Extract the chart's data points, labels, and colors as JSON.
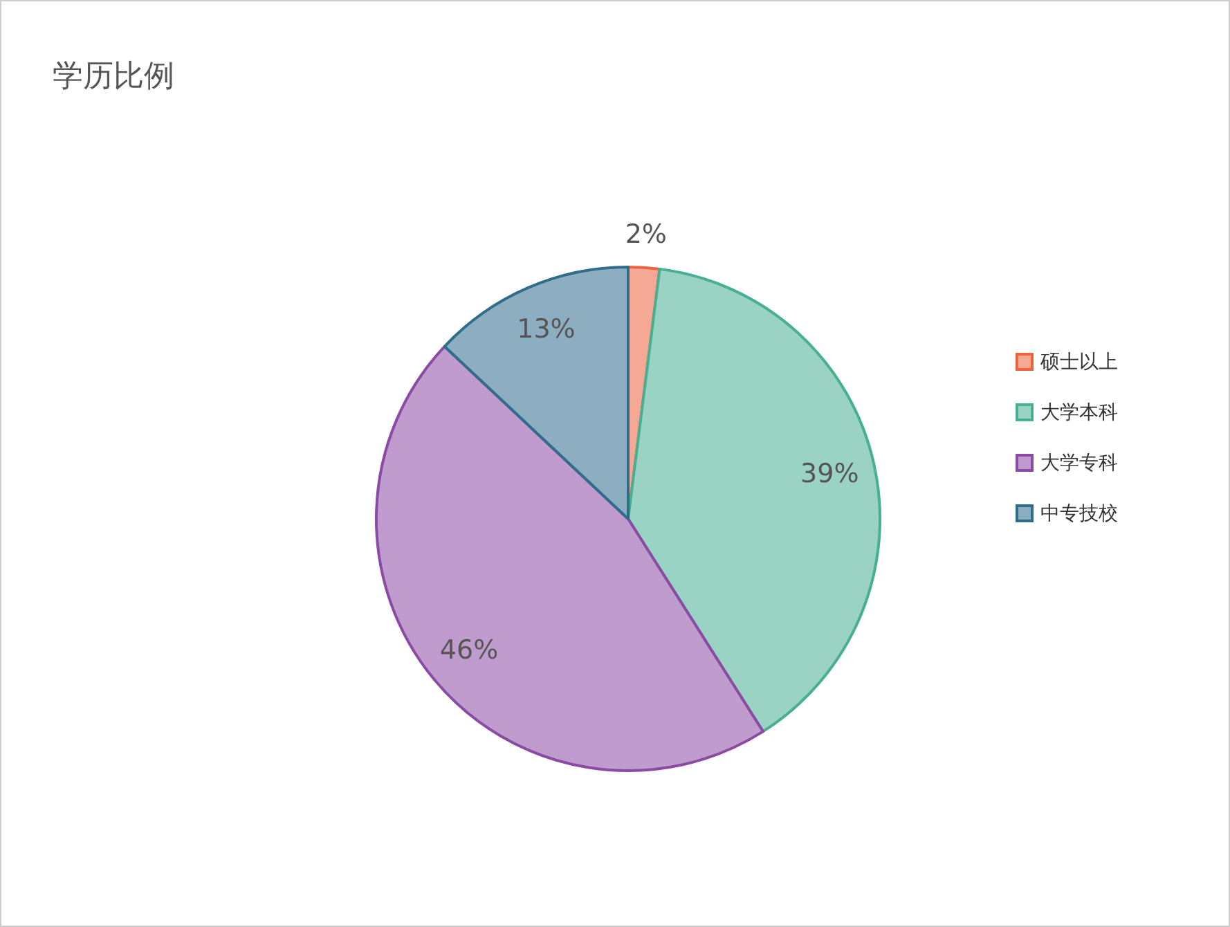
{
  "chart_data": {
    "type": "pie",
    "title": "学历比例",
    "categories": [
      "硕士以上",
      "大学本科",
      "大学专科",
      "中专技校"
    ],
    "values": [
      2,
      39,
      46,
      13
    ],
    "colors": [
      "#f5a995",
      "#9ad3c3",
      "#bf9ccd",
      "#8daec0"
    ],
    "value_labels": [
      "2%",
      "39%",
      "46%",
      "13%"
    ],
    "legend": "right"
  }
}
